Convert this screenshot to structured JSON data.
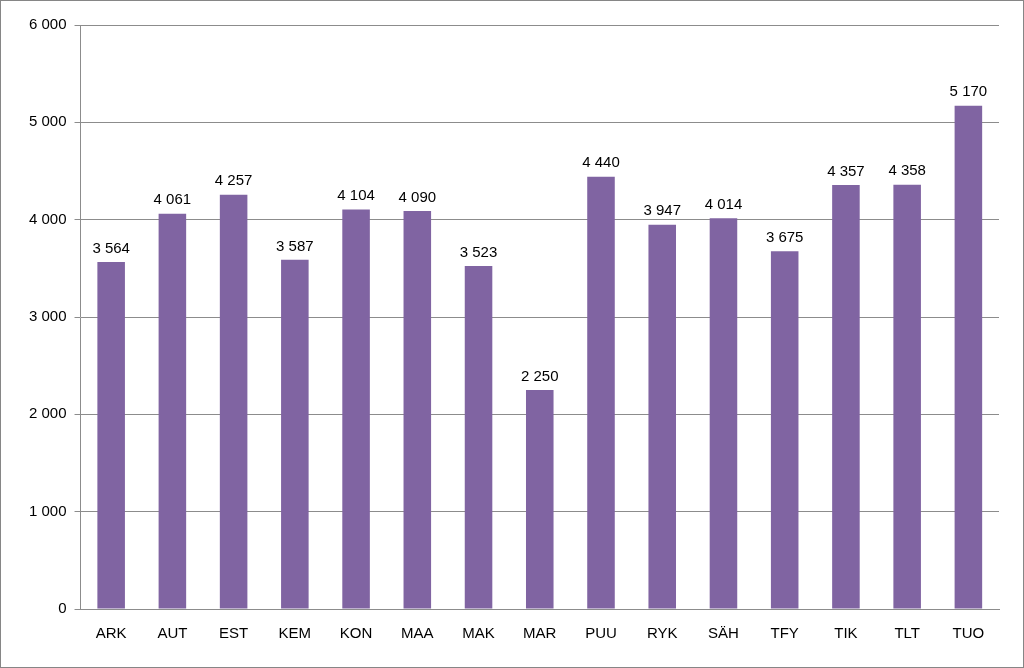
{
  "chart_data": {
    "type": "bar",
    "categories": [
      "ARK",
      "AUT",
      "EST",
      "KEM",
      "KON",
      "MAA",
      "MAK",
      "MAR",
      "PUU",
      "RYK",
      "SÄH",
      "TFY",
      "TIK",
      "TLT",
      "TUO"
    ],
    "values": [
      3564,
      4061,
      4257,
      3587,
      4104,
      4090,
      3523,
      2250,
      4440,
      3947,
      4014,
      3675,
      4357,
      4358,
      5170
    ],
    "value_labels": [
      "3 564",
      "4 061",
      "4 257",
      "3 587",
      "4 104",
      "4 090",
      "3 523",
      "2 250",
      "4 440",
      "3 947",
      "4 014",
      "3 675",
      "4 357",
      "4 358",
      "5 170"
    ],
    "color": "#8064a2",
    "ylim": [
      0,
      6000
    ],
    "yticks": [
      0,
      {
        "value": 1000,
        "label": "1 000"
      },
      {
        "value": 2000,
        "label": "2 000"
      },
      {
        "value": 3000,
        "label": "3 000"
      },
      {
        "value": 4000,
        "label": "4 000"
      },
      {
        "value": 5000,
        "label": "5 000"
      },
      {
        "value": 6000,
        "label": "6 000"
      }
    ],
    "grid": true,
    "data_labels": true
  }
}
